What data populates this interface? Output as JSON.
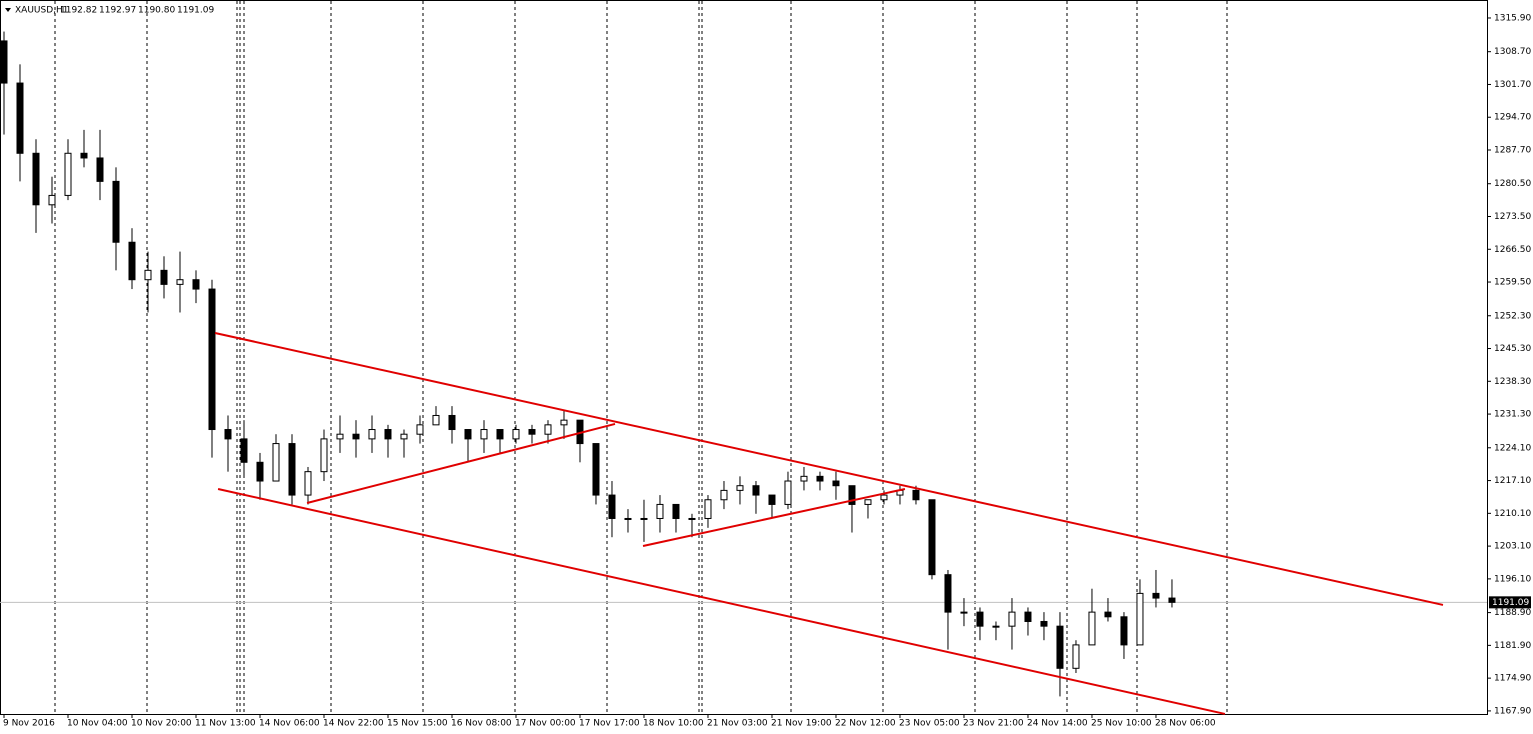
{
  "chart_data": {
    "type": "candlestick",
    "symbol": "XAUUSD,H1",
    "header_values": [
      "1192.82",
      "1192.97",
      "1190.80",
      "1191.09"
    ],
    "xlim": [
      -0.25,
      92.69
    ],
    "ylim": [
      1167.24,
      1319.74
    ],
    "yticks": [
      {
        "value": 1315.9,
        "label": "1315.90"
      },
      {
        "value": 1308.7,
        "label": "1308.70"
      },
      {
        "value": 1301.7,
        "label": "1301.70"
      },
      {
        "value": 1294.7,
        "label": "1294.70"
      },
      {
        "value": 1287.7,
        "label": "1287.70"
      },
      {
        "value": 1280.5,
        "label": "1280.50"
      },
      {
        "value": 1273.5,
        "label": "1273.50"
      },
      {
        "value": 1266.5,
        "label": "1266.50"
      },
      {
        "value": 1259.5,
        "label": "1259.50"
      },
      {
        "value": 1252.3,
        "label": "1252.30"
      },
      {
        "value": 1245.3,
        "label": "1245.30"
      },
      {
        "value": 1238.3,
        "label": "1238.30"
      },
      {
        "value": 1231.3,
        "label": "1231.30"
      },
      {
        "value": 1224.1,
        "label": "1224.10"
      },
      {
        "value": 1217.1,
        "label": "1217.10"
      },
      {
        "value": 1210.1,
        "label": "1210.10"
      },
      {
        "value": 1203.1,
        "label": "1203.10"
      },
      {
        "value": 1196.1,
        "label": "1196.10"
      },
      {
        "value": 1188.9,
        "label": "1188.90"
      },
      {
        "value": 1181.9,
        "label": "1181.90"
      },
      {
        "value": 1174.9,
        "label": "1174.90"
      },
      {
        "value": 1167.9,
        "label": "1167.90"
      }
    ],
    "xticks": [
      {
        "value": 0,
        "label": "9 Nov 2016"
      },
      {
        "value": 4,
        "label": "10 Nov 04:00"
      },
      {
        "value": 8,
        "label": "10 Nov 20:00"
      },
      {
        "value": 12,
        "label": "11 Nov 13:00"
      },
      {
        "value": 16,
        "label": "14 Nov 06:00"
      },
      {
        "value": 20,
        "label": "14 Nov 22:00"
      },
      {
        "value": 24,
        "label": "15 Nov 15:00"
      },
      {
        "value": 28,
        "label": "16 Nov 08:00"
      },
      {
        "value": 32,
        "label": "17 Nov 00:00"
      },
      {
        "value": 36,
        "label": "17 Nov 17:00"
      },
      {
        "value": 40,
        "label": "18 Nov 10:00"
      },
      {
        "value": 44,
        "label": "21 Nov 03:00"
      },
      {
        "value": 48,
        "label": "21 Nov 19:00"
      },
      {
        "value": 52,
        "label": "22 Nov 12:00"
      },
      {
        "value": 56,
        "label": "23 Nov 05:00"
      },
      {
        "value": 60,
        "label": "23 Nov 21:00"
      },
      {
        "value": 64,
        "label": "24 Nov 14:00"
      },
      {
        "value": 68,
        "label": "25 Nov 10:00"
      },
      {
        "value": 72,
        "label": "28 Nov 06:00"
      }
    ],
    "current_price": 1191.09,
    "trendline_color": "#e00000",
    "trendlines": [
      {
        "x": [
          13.19,
          89.94
        ],
        "y": [
          1248.62,
          1190.53
        ]
      },
      {
        "x": [
          13.38,
          76.31
        ],
        "y": [
          1215.3,
          1167.25
        ]
      },
      {
        "x": [
          18.94,
          38.19
        ],
        "y": [
          1212.31,
          1229.19
        ]
      },
      {
        "x": [
          39.94,
          56.31
        ],
        "y": [
          1203.13,
          1215.3
        ]
      }
    ],
    "candles": [
      [
        1311,
        1313,
        1291,
        1302
      ],
      [
        1302,
        1306,
        1281,
        1287
      ],
      [
        1287,
        1290,
        1270,
        1276
      ],
      [
        1276,
        1282,
        1272,
        1278
      ],
      [
        1278,
        1290,
        1277,
        1287
      ],
      [
        1287,
        1292,
        1284,
        1286
      ],
      [
        1286,
        1292,
        1277,
        1281
      ],
      [
        1281,
        1284,
        1262,
        1268
      ],
      [
        1268,
        1271,
        1258,
        1260
      ],
      [
        1260,
        1266,
        1253,
        1262
      ],
      [
        1262,
        1265,
        1256,
        1259
      ],
      [
        1259,
        1266,
        1253,
        1260
      ],
      [
        1260,
        1262,
        1255,
        1258
      ],
      [
        1258,
        1260,
        1222,
        1228
      ],
      [
        1228,
        1231,
        1219,
        1226
      ],
      [
        1226,
        1230,
        1218,
        1221
      ],
      [
        1221,
        1223,
        1213,
        1217
      ],
      [
        1217,
        1227,
        1217,
        1225
      ],
      [
        1225,
        1227,
        1212,
        1214
      ],
      [
        1214,
        1220,
        1212,
        1219
      ],
      [
        1219,
        1228,
        1217,
        1226
      ],
      [
        1226,
        1231,
        1223,
        1227
      ],
      [
        1227,
        1230,
        1222,
        1226
      ],
      [
        1226,
        1231,
        1223,
        1228
      ],
      [
        1228,
        1229,
        1222,
        1226
      ],
      [
        1226,
        1228,
        1222,
        1227
      ],
      [
        1227,
        1231,
        1225,
        1229
      ],
      [
        1229,
        1233,
        1229,
        1231
      ],
      [
        1231,
        1233,
        1225,
        1228
      ],
      [
        1228,
        1228,
        1221,
        1226
      ],
      [
        1226,
        1230,
        1223,
        1228
      ],
      [
        1228,
        1228,
        1223,
        1226
      ],
      [
        1226,
        1229,
        1225,
        1228
      ],
      [
        1228,
        1229,
        1225,
        1227
      ],
      [
        1227,
        1230,
        1225,
        1229
      ],
      [
        1229,
        1232,
        1226,
        1230
      ],
      [
        1230,
        1230,
        1221,
        1225
      ],
      [
        1225,
        1225,
        1212,
        1214
      ],
      [
        1214,
        1217,
        1205,
        1209
      ],
      [
        1209,
        1211,
        1206,
        1209
      ],
      [
        1209,
        1213,
        1204,
        1209
      ],
      [
        1209,
        1214,
        1206,
        1212
      ],
      [
        1212,
        1212,
        1206,
        1209
      ],
      [
        1209,
        1210,
        1205,
        1209
      ],
      [
        1209,
        1214,
        1207,
        1213
      ],
      [
        1213,
        1217,
        1211,
        1215
      ],
      [
        1215,
        1218,
        1212,
        1216
      ],
      [
        1216,
        1217,
        1210,
        1214
      ],
      [
        1214,
        1214,
        1209,
        1212
      ],
      [
        1212,
        1219,
        1211,
        1217
      ],
      [
        1217,
        1220,
        1215,
        1218
      ],
      [
        1218,
        1219,
        1215,
        1217
      ],
      [
        1217,
        1219,
        1213,
        1216
      ],
      [
        1216,
        1216,
        1206,
        1212
      ],
      [
        1212,
        1213,
        1209,
        1213
      ],
      [
        1213,
        1215,
        1212,
        1214
      ],
      [
        1214,
        1216,
        1212,
        1215
      ],
      [
        1215,
        1216,
        1212,
        1213
      ],
      [
        1213,
        1213,
        1196,
        1197
      ],
      [
        1197,
        1198,
        1181,
        1189
      ],
      [
        1189,
        1192,
        1186,
        1189
      ],
      [
        1189,
        1190,
        1183,
        1186
      ],
      [
        1186,
        1187,
        1183,
        1186
      ],
      [
        1186,
        1192,
        1181,
        1189
      ],
      [
        1189,
        1190,
        1184,
        1187
      ],
      [
        1187,
        1189,
        1183,
        1186
      ],
      [
        1186,
        1189,
        1171,
        1177
      ],
      [
        1177,
        1183,
        1176,
        1182
      ],
      [
        1182,
        1194,
        1182,
        1189
      ],
      [
        1189,
        1192,
        1187,
        1188
      ],
      [
        1188,
        1189,
        1179,
        1182
      ],
      [
        1182,
        1196,
        1182,
        1193
      ],
      [
        1193,
        1198,
        1190,
        1192
      ],
      [
        1192,
        1196,
        1190,
        1191.09
      ]
    ]
  }
}
